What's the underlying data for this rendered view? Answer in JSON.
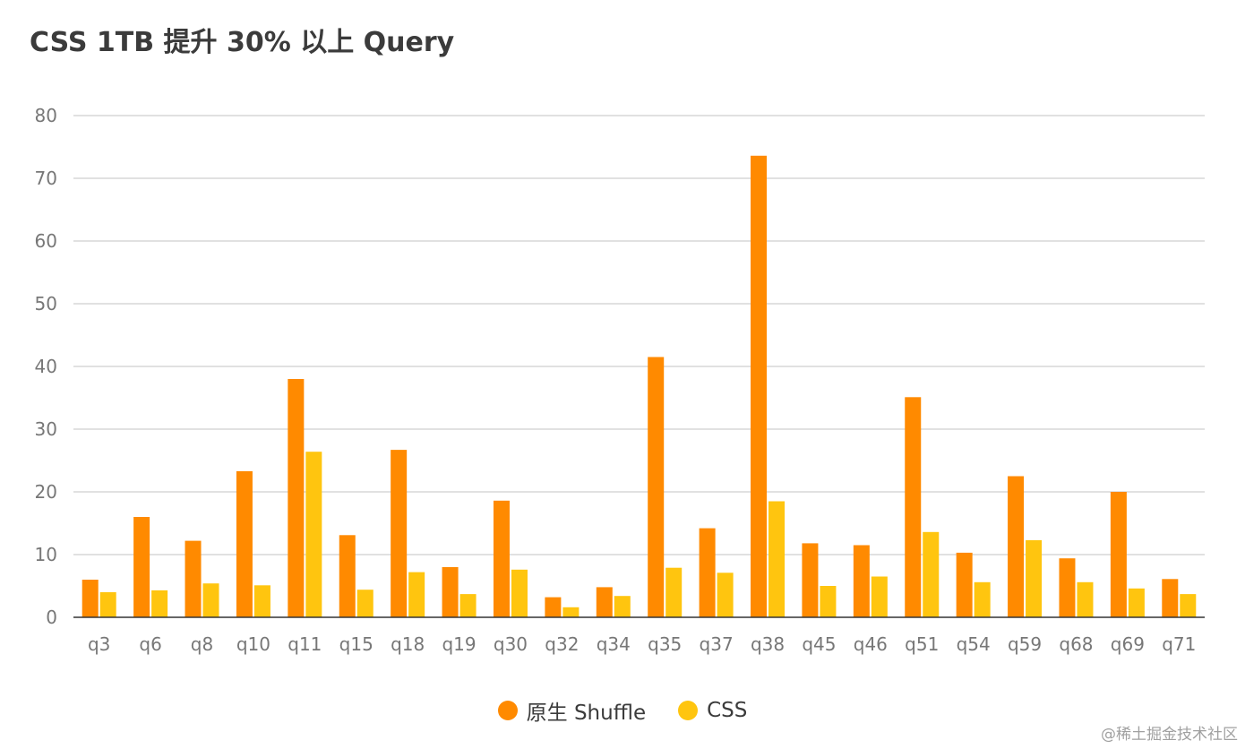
{
  "title": "CSS 1TB 提升 30% 以上 Query",
  "watermark": "@稀土掘金技术社区",
  "colors": {
    "shuffle": "#FF8A00",
    "css": "#FFC50F",
    "grid": "#cfcfcf",
    "axis": "#333333"
  },
  "chart_data": {
    "type": "bar",
    "title": "CSS 1TB 提升 30% 以上 Query",
    "xlabel": "",
    "ylabel": "",
    "ylim": [
      0,
      80
    ],
    "yticks": [
      0,
      10,
      20,
      30,
      40,
      50,
      60,
      70,
      80
    ],
    "grid": true,
    "legend_position": "bottom",
    "categories": [
      "q3",
      "q6",
      "q8",
      "q10",
      "q11",
      "q15",
      "q18",
      "q19",
      "q30",
      "q32",
      "q34",
      "q35",
      "q37",
      "q38",
      "q45",
      "q46",
      "q51",
      "q54",
      "q59",
      "q68",
      "q69",
      "q71"
    ],
    "series": [
      {
        "name": "原生 Shuffle",
        "color": "#FF8A00",
        "values": [
          6.0,
          16.0,
          12.2,
          23.3,
          38.0,
          13.1,
          26.7,
          8.0,
          18.6,
          3.2,
          4.8,
          41.5,
          14.2,
          73.6,
          11.8,
          11.5,
          35.1,
          10.3,
          22.5,
          9.4,
          20.0,
          6.1
        ]
      },
      {
        "name": "CSS",
        "color": "#FFC50F",
        "values": [
          4.0,
          4.3,
          5.4,
          5.1,
          26.4,
          4.4,
          7.2,
          3.7,
          7.6,
          1.6,
          3.4,
          7.9,
          7.1,
          18.5,
          5.0,
          6.5,
          13.6,
          5.6,
          12.3,
          5.6,
          4.6,
          3.7
        ]
      }
    ]
  }
}
